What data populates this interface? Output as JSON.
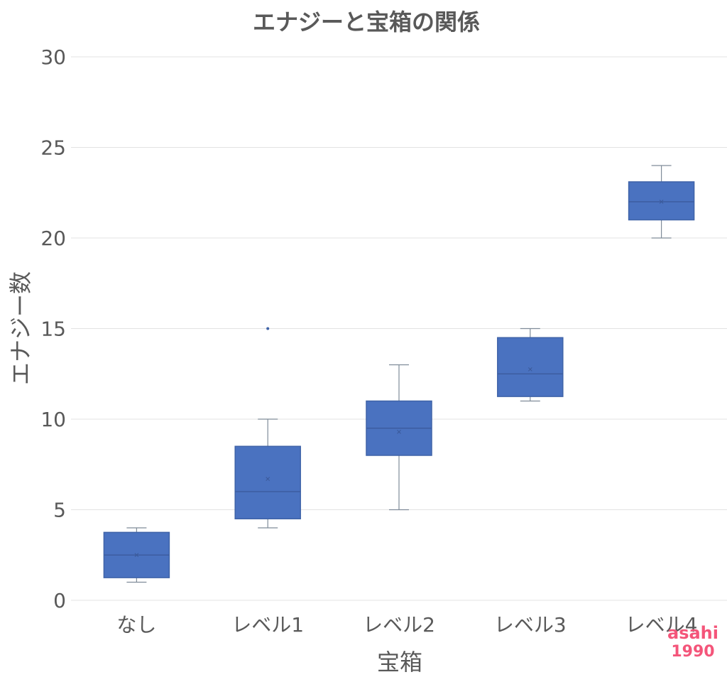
{
  "chart_data": {
    "type": "box",
    "title": "エナジーと宝箱の関係",
    "xlabel": "宝箱",
    "ylabel": "エナジー数",
    "ylim": [
      0,
      30
    ],
    "yticks": [
      "0",
      "5",
      "10",
      "15",
      "20",
      "25",
      "30"
    ],
    "categories": [
      "なし",
      "レベル1",
      "レベル2",
      "レベル3",
      "レベル4"
    ],
    "boxes": [
      {
        "min": 1,
        "q1": 1.25,
        "median": 2.5,
        "mean": 2.5,
        "q3": 3.75,
        "max": 4,
        "outliers": []
      },
      {
        "min": 4,
        "q1": 4.5,
        "median": 6,
        "mean": 6.7,
        "q3": 8.5,
        "max": 10,
        "outliers": [
          15
        ]
      },
      {
        "min": 5,
        "q1": 8,
        "median": 9.5,
        "mean": 9.3,
        "q3": 11,
        "max": 13,
        "outliers": []
      },
      {
        "min": 11,
        "q1": 11.25,
        "median": 12.5,
        "mean": 12.75,
        "q3": 14.5,
        "max": 15,
        "outliers": []
      },
      {
        "min": 20,
        "q1": 21,
        "median": 22,
        "mean": 22,
        "q3": 23.1,
        "max": 24,
        "outliers": []
      }
    ],
    "grid": true,
    "legend": "none",
    "box_color": "#4a72c0"
  },
  "watermark": {
    "line1": "asahi",
    "line2": "1990",
    "color": "#f4557a"
  }
}
